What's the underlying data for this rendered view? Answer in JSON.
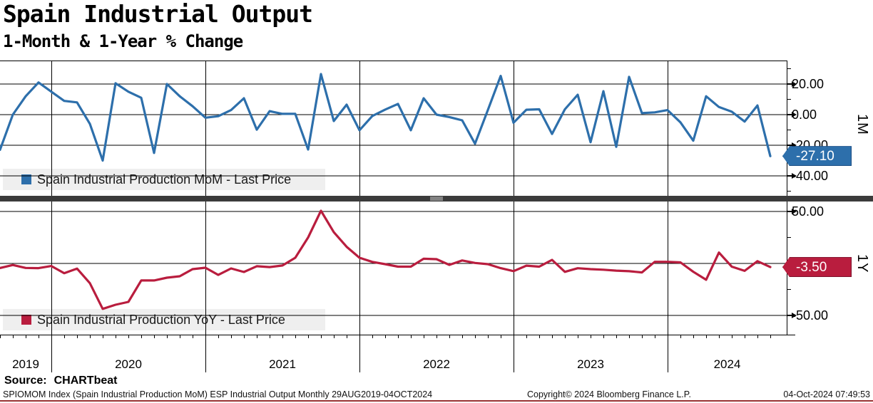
{
  "header": {
    "title": "Spain Industrial Output",
    "subtitle": "1-Month & 1-Year % Change"
  },
  "x_axis": {
    "year_labels": [
      "2019",
      "2020",
      "2021",
      "2022",
      "2023",
      "2024"
    ],
    "jan_month_indices": [
      4,
      16,
      28,
      40,
      52
    ],
    "months": [
      "2019-09",
      "2019-10",
      "2019-11",
      "2019-12",
      "2020-01",
      "2020-02",
      "2020-03",
      "2020-04",
      "2020-05",
      "2020-06",
      "2020-07",
      "2020-08",
      "2020-09",
      "2020-10",
      "2020-11",
      "2020-12",
      "2021-01",
      "2021-02",
      "2021-03",
      "2021-04",
      "2021-05",
      "2021-06",
      "2021-07",
      "2021-08",
      "2021-09",
      "2021-10",
      "2021-11",
      "2021-12",
      "2022-01",
      "2022-02",
      "2022-03",
      "2022-04",
      "2022-05",
      "2022-06",
      "2022-07",
      "2022-08",
      "2022-09",
      "2022-10",
      "2022-11",
      "2022-12",
      "2023-01",
      "2023-02",
      "2023-03",
      "2023-04",
      "2023-05",
      "2023-06",
      "2023-07",
      "2023-08",
      "2023-09",
      "2023-10",
      "2023-11",
      "2023-12",
      "2024-01",
      "2024-02",
      "2024-03",
      "2024-04",
      "2024-05",
      "2024-06",
      "2024-07",
      "2024-08",
      "2024-09"
    ]
  },
  "chart_data": [
    {
      "type": "line",
      "title": "Spain Industrial Production MoM - Last Price",
      "series_name": "Spain Industrial Production MoM",
      "panel_label": "1M",
      "color": "#2d6fab",
      "last_price": "-27.10",
      "last_price_value": -27.1,
      "ylim": [
        -53,
        35
      ],
      "grid": true,
      "legend_position": "bottom-left-inside",
      "axis_side": "right",
      "yticks_labeled": [
        {
          "value": 20,
          "label": "20.00"
        },
        {
          "value": 0,
          "label": "0.00"
        },
        {
          "value": -20,
          "label": "-20.00"
        },
        {
          "value": -40,
          "label": "-40.00"
        }
      ],
      "yticks_minor": [
        30,
        10,
        -10,
        -30,
        -50
      ],
      "x_months_ref": "x_axis.months",
      "values": [
        -23,
        0,
        12,
        21,
        15,
        9,
        8,
        -6,
        -30,
        20.5,
        15,
        11,
        -25,
        20,
        12,
        5.5,
        -2,
        -1,
        3,
        10.7,
        -9.8,
        2.3,
        0.5,
        0.5,
        -22.8,
        26.5,
        -4.2,
        6.5,
        -10.2,
        -0.9,
        3.3,
        7,
        -10.2,
        10.7,
        0,
        -1.6,
        -3.7,
        -19,
        3,
        25.3,
        -5.3,
        3.2,
        3.5,
        -12.6,
        3.5,
        13,
        -18,
        15.3,
        -21,
        24.7,
        1,
        1.5,
        3,
        -5,
        -17,
        12,
        5,
        1.9,
        -4.5,
        6,
        -27.1
      ]
    },
    {
      "type": "line",
      "title": "Spain Industrial Production YoY - Last Price",
      "series_name": "Spain Industrial Production YoY",
      "panel_label": "1Y",
      "color": "#b91d3e",
      "last_price": "-3.50",
      "last_price_value": -3.5,
      "ylim": [
        -68,
        60
      ],
      "grid": true,
      "legend_position": "bottom-left-inside",
      "axis_side": "right",
      "yticks_labeled": [
        {
          "value": 50,
          "label": "50.00"
        },
        {
          "value": 0,
          "label": "0.00"
        },
        {
          "value": -50,
          "label": "-50.00"
        }
      ],
      "yticks_minor": [
        25,
        -25
      ],
      "x_months_ref": "x_axis.months",
      "values": [
        -4.4,
        -1.5,
        -4.3,
        -4.5,
        -2.5,
        -9.4,
        -4.9,
        -19,
        -43.7,
        -39.7,
        -37,
        -16.4,
        -16.4,
        -13.7,
        -12.3,
        -5.5,
        -4.1,
        -11,
        -4.8,
        -8.2,
        -2.7,
        -3.5,
        -2,
        5.5,
        25,
        50.7,
        30.1,
        16,
        5.5,
        1.5,
        -0.7,
        -3.1,
        -3.1,
        4.5,
        4.1,
        -1.4,
        2.9,
        0.5,
        -0.7,
        -4.5,
        -7.4,
        -2.1,
        -3.1,
        3.4,
        -8.1,
        -4.6,
        -5.5,
        -6,
        -6.9,
        -7.5,
        -8.6,
        1.6,
        1.6,
        1,
        -8,
        -15.7,
        10.5,
        -3.1,
        -7.1,
        2.2,
        -3.5
      ]
    }
  ],
  "footer": {
    "source_label": "Source:",
    "source_value": "CHARTbeat",
    "info": "SPIOMOM Index (Spain Industrial Production MoM) ESP Industrial Output  Monthly 29AUG2019-04OCT2024",
    "copyright": "Copyright© 2024 Bloomberg Finance L.P.",
    "datetime": "04-Oct-2024 07:49:53"
  },
  "colors": {
    "mom_blue": "#2d6fab",
    "yoy_red": "#b91d3e",
    "gridline": "#000000",
    "separator": "#3b3b3b",
    "legend_bg": "#efefef",
    "bottom_rule": "#993333"
  }
}
